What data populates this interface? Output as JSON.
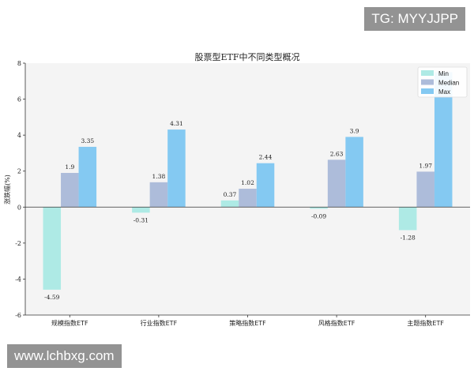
{
  "watermarks": {
    "top": "TG: MYYJJPP",
    "bottom": "www.lchbxg.com"
  },
  "colors": {
    "Min": "#aeeae5",
    "Median": "#adbcda",
    "Max": "#84c9f2",
    "plot_bg": "#f4f4f4"
  },
  "chart_data": {
    "type": "bar",
    "title": "股票型ETF中不同类型概况",
    "xlabel": "",
    "ylabel": "涨跌幅(%)",
    "ylim": [
      -6,
      8
    ],
    "yticks": [
      -6,
      -4,
      -2,
      0,
      2,
      4,
      6,
      8
    ],
    "grid": false,
    "legend_position": "top-right",
    "categories": [
      "规模指数ETF",
      "行业指数ETF",
      "策略指数ETF",
      "风格指数ETF",
      "主题指数ETF"
    ],
    "series": [
      {
        "name": "Min",
        "values": [
          -4.59,
          -0.31,
          0.37,
          -0.09,
          -1.28
        ],
        "labels": [
          "-4.59",
          "-0.31",
          "0.37",
          "-0.09",
          "-1.28"
        ]
      },
      {
        "name": "Median",
        "values": [
          1.9,
          1.38,
          1.02,
          2.63,
          1.97
        ],
        "labels": [
          "1.9",
          "1.38",
          "1.02",
          "2.63",
          "1.97"
        ]
      },
      {
        "name": "Max",
        "values": [
          3.35,
          4.31,
          2.44,
          3.9,
          7.5
        ],
        "labels": [
          "3.35",
          "4.31",
          "2.44",
          "3.9",
          ""
        ]
      }
    ]
  }
}
